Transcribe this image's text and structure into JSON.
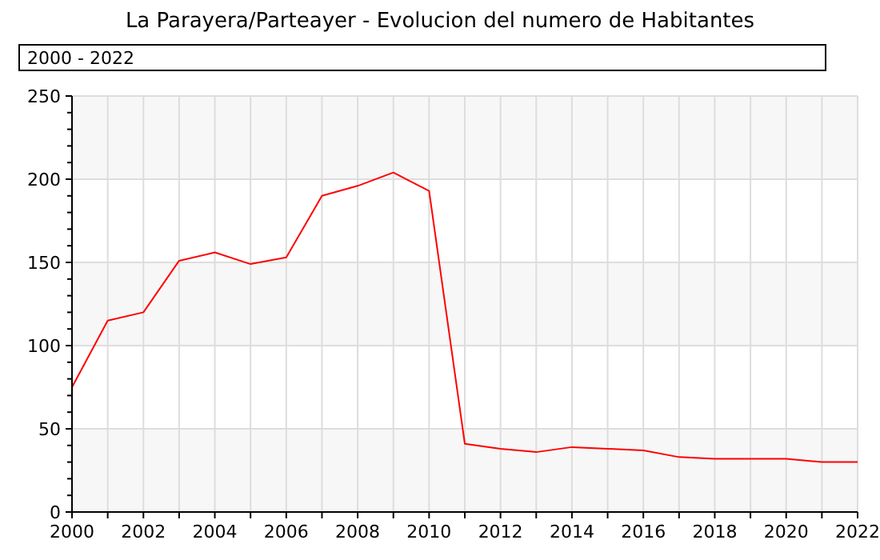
{
  "chart_data": {
    "type": "line",
    "title": "La Parayera/Parteayer - Evolucion del numero de Habitantes",
    "subtitle": "2000 - 2022",
    "x": [
      2000,
      2001,
      2002,
      2003,
      2004,
      2005,
      2006,
      2007,
      2008,
      2009,
      2010,
      2011,
      2012,
      2013,
      2014,
      2015,
      2016,
      2017,
      2018,
      2019,
      2020,
      2021,
      2022
    ],
    "series": [
      {
        "color": "#ff0000",
        "values": [
          75,
          115,
          120,
          151,
          156,
          149,
          153,
          190,
          196,
          204,
          193,
          41,
          38,
          36,
          39,
          38,
          37,
          33,
          32,
          32,
          32,
          30,
          30
        ]
      }
    ],
    "xlim": [
      2000,
      2022
    ],
    "xticks": [
      2000,
      {
        "value": 2001,
        "label": null
      },
      2002,
      {
        "value": 2003,
        "label": null
      },
      2004,
      {
        "value": 2005,
        "label": null
      },
      2006,
      {
        "value": 2007,
        "label": null
      },
      2008,
      {
        "value": 2009,
        "label": null
      },
      2010,
      {
        "value": 2011,
        "label": null
      },
      2012,
      {
        "value": 2013,
        "label": null
      },
      2014,
      {
        "value": 2015,
        "label": null
      },
      2016,
      {
        "value": 2017,
        "label": null
      },
      2018,
      {
        "value": 2019,
        "label": null
      },
      2020,
      {
        "value": 2021,
        "label": null
      },
      2022
    ],
    "ylim": [
      0,
      250
    ],
    "yticks": [
      0,
      {
        "value": 10,
        "label": null
      },
      {
        "value": 20,
        "label": null
      },
      {
        "value": 30,
        "label": null
      },
      {
        "value": 40,
        "label": null
      },
      50,
      {
        "value": 60,
        "label": null
      },
      {
        "value": 70,
        "label": null
      },
      {
        "value": 80,
        "label": null
      },
      {
        "value": 90,
        "label": null
      },
      100,
      {
        "value": 110,
        "label": null
      },
      {
        "value": 120,
        "label": null
      },
      {
        "value": 130,
        "label": null
      },
      {
        "value": 140,
        "label": null
      },
      150,
      {
        "value": 160,
        "label": null
      },
      {
        "value": 170,
        "label": null
      },
      {
        "value": 180,
        "label": null
      },
      {
        "value": 190,
        "label": null
      },
      200,
      {
        "value": 210,
        "label": null
      },
      {
        "value": 220,
        "label": null
      },
      {
        "value": 230,
        "label": null
      },
      {
        "value": 240,
        "label": null
      },
      250
    ],
    "grid": true,
    "marker": "none",
    "line_style": "solid"
  }
}
